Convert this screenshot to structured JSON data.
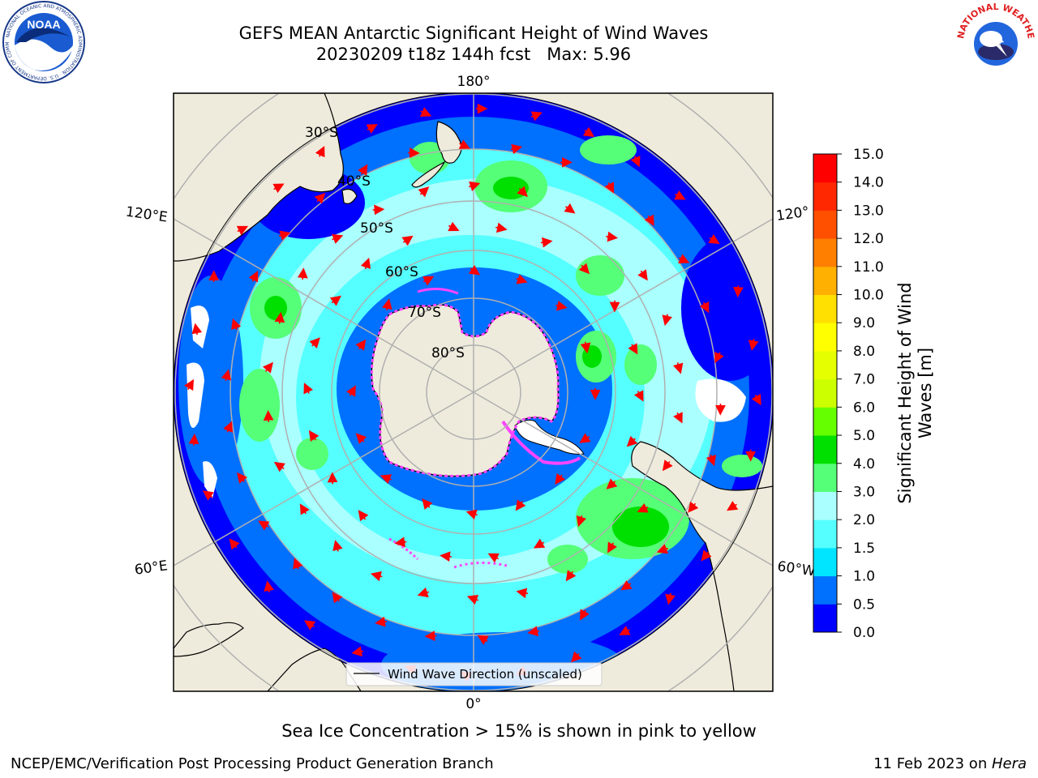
{
  "header": {
    "title_line1": "GEFS MEAN Antarctic Significant Height of Wind Waves",
    "title_line2": "20230209 t18z 144h fcst   Max: 5.96"
  },
  "logos": {
    "left": {
      "icon": "noaa-logo",
      "text": "NOAA",
      "ring_text": "NATIONAL OCEANIC AND ATMOSPHERIC ADMINISTRATION · U.S. DEPARTMENT OF COMMERCE"
    },
    "right": {
      "icon": "nws-logo",
      "ring_text": "NATIONAL WEATHER SERVICE"
    }
  },
  "map": {
    "projection": "south-polar-stereographic",
    "lon_labels": {
      "top": "180°",
      "bottom": "0°",
      "left_upper": "120°E",
      "left_lower": "60°E",
      "right_upper": "120°",
      "right_lower": "60°W"
    },
    "lat_labels": [
      "30°S",
      "40°S",
      "50°S",
      "60°S",
      "70°S",
      "80°S"
    ],
    "legend_label": "Wind Wave Direction (unscaled)",
    "colors": {
      "land": "#efebdc",
      "frame": "#000000",
      "grid": "#b0b0b0",
      "arrow": "#ff0000",
      "sea_ice": "#ff44ff",
      "no_data": "#ffffff"
    }
  },
  "colorbar": {
    "label": "Significant Height of Wind\nWaves [m]",
    "ticks": [
      "0.0",
      "0.5",
      "1.0",
      "1.5",
      "2.0",
      "3.0",
      "4.0",
      "5.0",
      "6.0",
      "7.0",
      "8.0",
      "9.0",
      "10.0",
      "11.0",
      "12.0",
      "13.0",
      "14.0",
      "15.0"
    ],
    "colors": [
      "#0000ff",
      "#0070ff",
      "#00e5ff",
      "#55ffff",
      "#aaffff",
      "#55ff77",
      "#00e000",
      "#66ff00",
      "#ccff00",
      "#e5ff00",
      "#ffff00",
      "#ffe000",
      "#ffb000",
      "#ff8000",
      "#ff5000",
      "#ff2800",
      "#ff0000"
    ]
  },
  "caption": "Sea Ice Concentration > 15% is shown in pink to yellow",
  "footer": {
    "left": "NCEP/EMC/Verification Post Processing Product Generation Branch",
    "right_prefix": "11 Feb 2023 on ",
    "right_host": "Hera"
  }
}
